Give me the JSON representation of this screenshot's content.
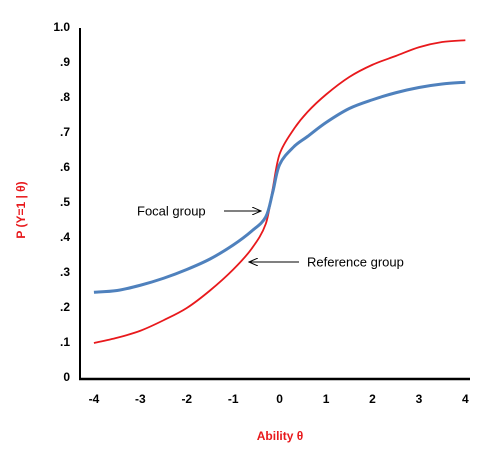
{
  "chart_data": {
    "type": "line",
    "x_label": "Ability θ",
    "y_label": "P (Y=1 | θ)",
    "annotations": [
      "Focal group",
      "Reference group"
    ],
    "x": [
      -4,
      -3.5,
      -3,
      -2.5,
      -2,
      -1.5,
      -1,
      -0.6,
      -0.3,
      -0.15,
      0,
      0.3,
      0.6,
      1,
      1.5,
      2,
      2.5,
      3,
      3.5,
      4
    ],
    "series": [
      {
        "name": "Reference group",
        "color": "#e8191c",
        "values": [
          0.1,
          0.115,
          0.135,
          0.165,
          0.2,
          0.25,
          0.31,
          0.37,
          0.44,
          0.54,
          0.64,
          0.71,
          0.76,
          0.81,
          0.86,
          0.895,
          0.92,
          0.945,
          0.96,
          0.965
        ]
      },
      {
        "name": "Focal group",
        "color": "#4f81bd",
        "values": [
          0.245,
          0.25,
          0.265,
          0.285,
          0.31,
          0.34,
          0.38,
          0.42,
          0.46,
          0.53,
          0.61,
          0.66,
          0.69,
          0.73,
          0.77,
          0.795,
          0.815,
          0.83,
          0.84,
          0.845
        ]
      }
    ],
    "xlim": [
      -4.3,
      4.1
    ],
    "ylim": [
      0,
      1.0
    ],
    "xticks": [
      -4,
      -3,
      -2,
      -1,
      0,
      1,
      2,
      3,
      4
    ],
    "yticks": [
      {
        "value": 0,
        "label": "0"
      },
      {
        "value": 0.1,
        "label": ".1"
      },
      {
        "value": 0.2,
        "label": ".2"
      },
      {
        "value": 0.3,
        "label": ".3"
      },
      {
        "value": 0.4,
        "label": ".4"
      },
      {
        "value": 0.5,
        "label": ".5"
      },
      {
        "value": 0.6,
        "label": ".6"
      },
      {
        "value": 0.7,
        "label": ".7"
      },
      {
        "value": 0.8,
        "label": ".8"
      },
      {
        "value": 0.9,
        "label": ".9"
      },
      {
        "value": 1.0,
        "label": "1.0"
      }
    ],
    "grid": false
  }
}
